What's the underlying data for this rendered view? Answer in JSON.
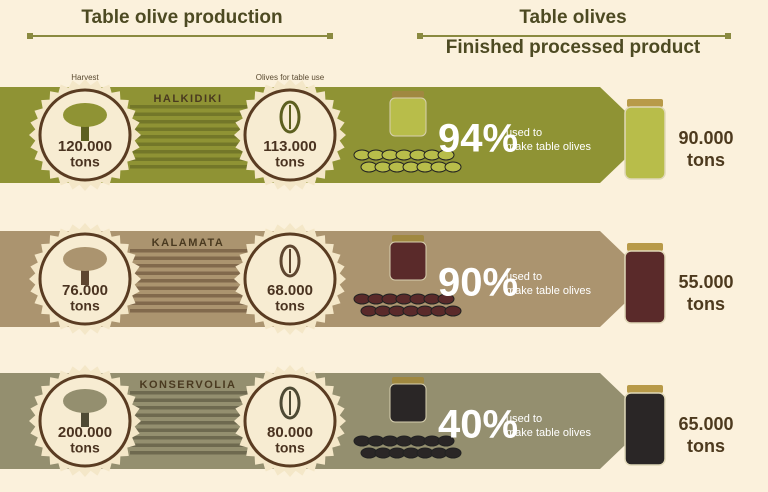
{
  "header": {
    "left_title": "Table olive production",
    "right_title": "Table olives",
    "right_subtitle": "Finished processed product",
    "harvest_label": "Harvest",
    "table_use_label": "Olives for table use"
  },
  "rows": [
    {
      "name": "HALKIDIKI",
      "color": "#8f9334",
      "dark": "#5d6020",
      "jar": "#b8bd4a",
      "harvest": "120.000",
      "harvest_unit": "tons",
      "table_use": "113.000",
      "table_use_unit": "tons",
      "percent": "94%",
      "note_1": "used to",
      "note_2": "make table olives",
      "product": "90.000",
      "product_unit": "tons"
    },
    {
      "name": "KALAMATA",
      "color": "#ab946f",
      "dark": "#5e4630",
      "jar": "#5a2a2a",
      "harvest": "76.000",
      "harvest_unit": "tons",
      "table_use": "68.000",
      "table_use_unit": "tons",
      "percent": "90%",
      "note_1": "used to",
      "note_2": "make table olives",
      "product": "55.000",
      "product_unit": "tons"
    },
    {
      "name": "KONSERVOLIA",
      "color": "#948f6f",
      "dark": "#4e4a34",
      "jar": "#2a2626",
      "harvest": "200.000",
      "harvest_unit": "tons",
      "table_use": "80.000",
      "table_use_unit": "tons",
      "percent": "40%",
      "note_1": "used to",
      "note_2": "make table olives",
      "product": "65.000",
      "product_unit": "tons"
    }
  ]
}
